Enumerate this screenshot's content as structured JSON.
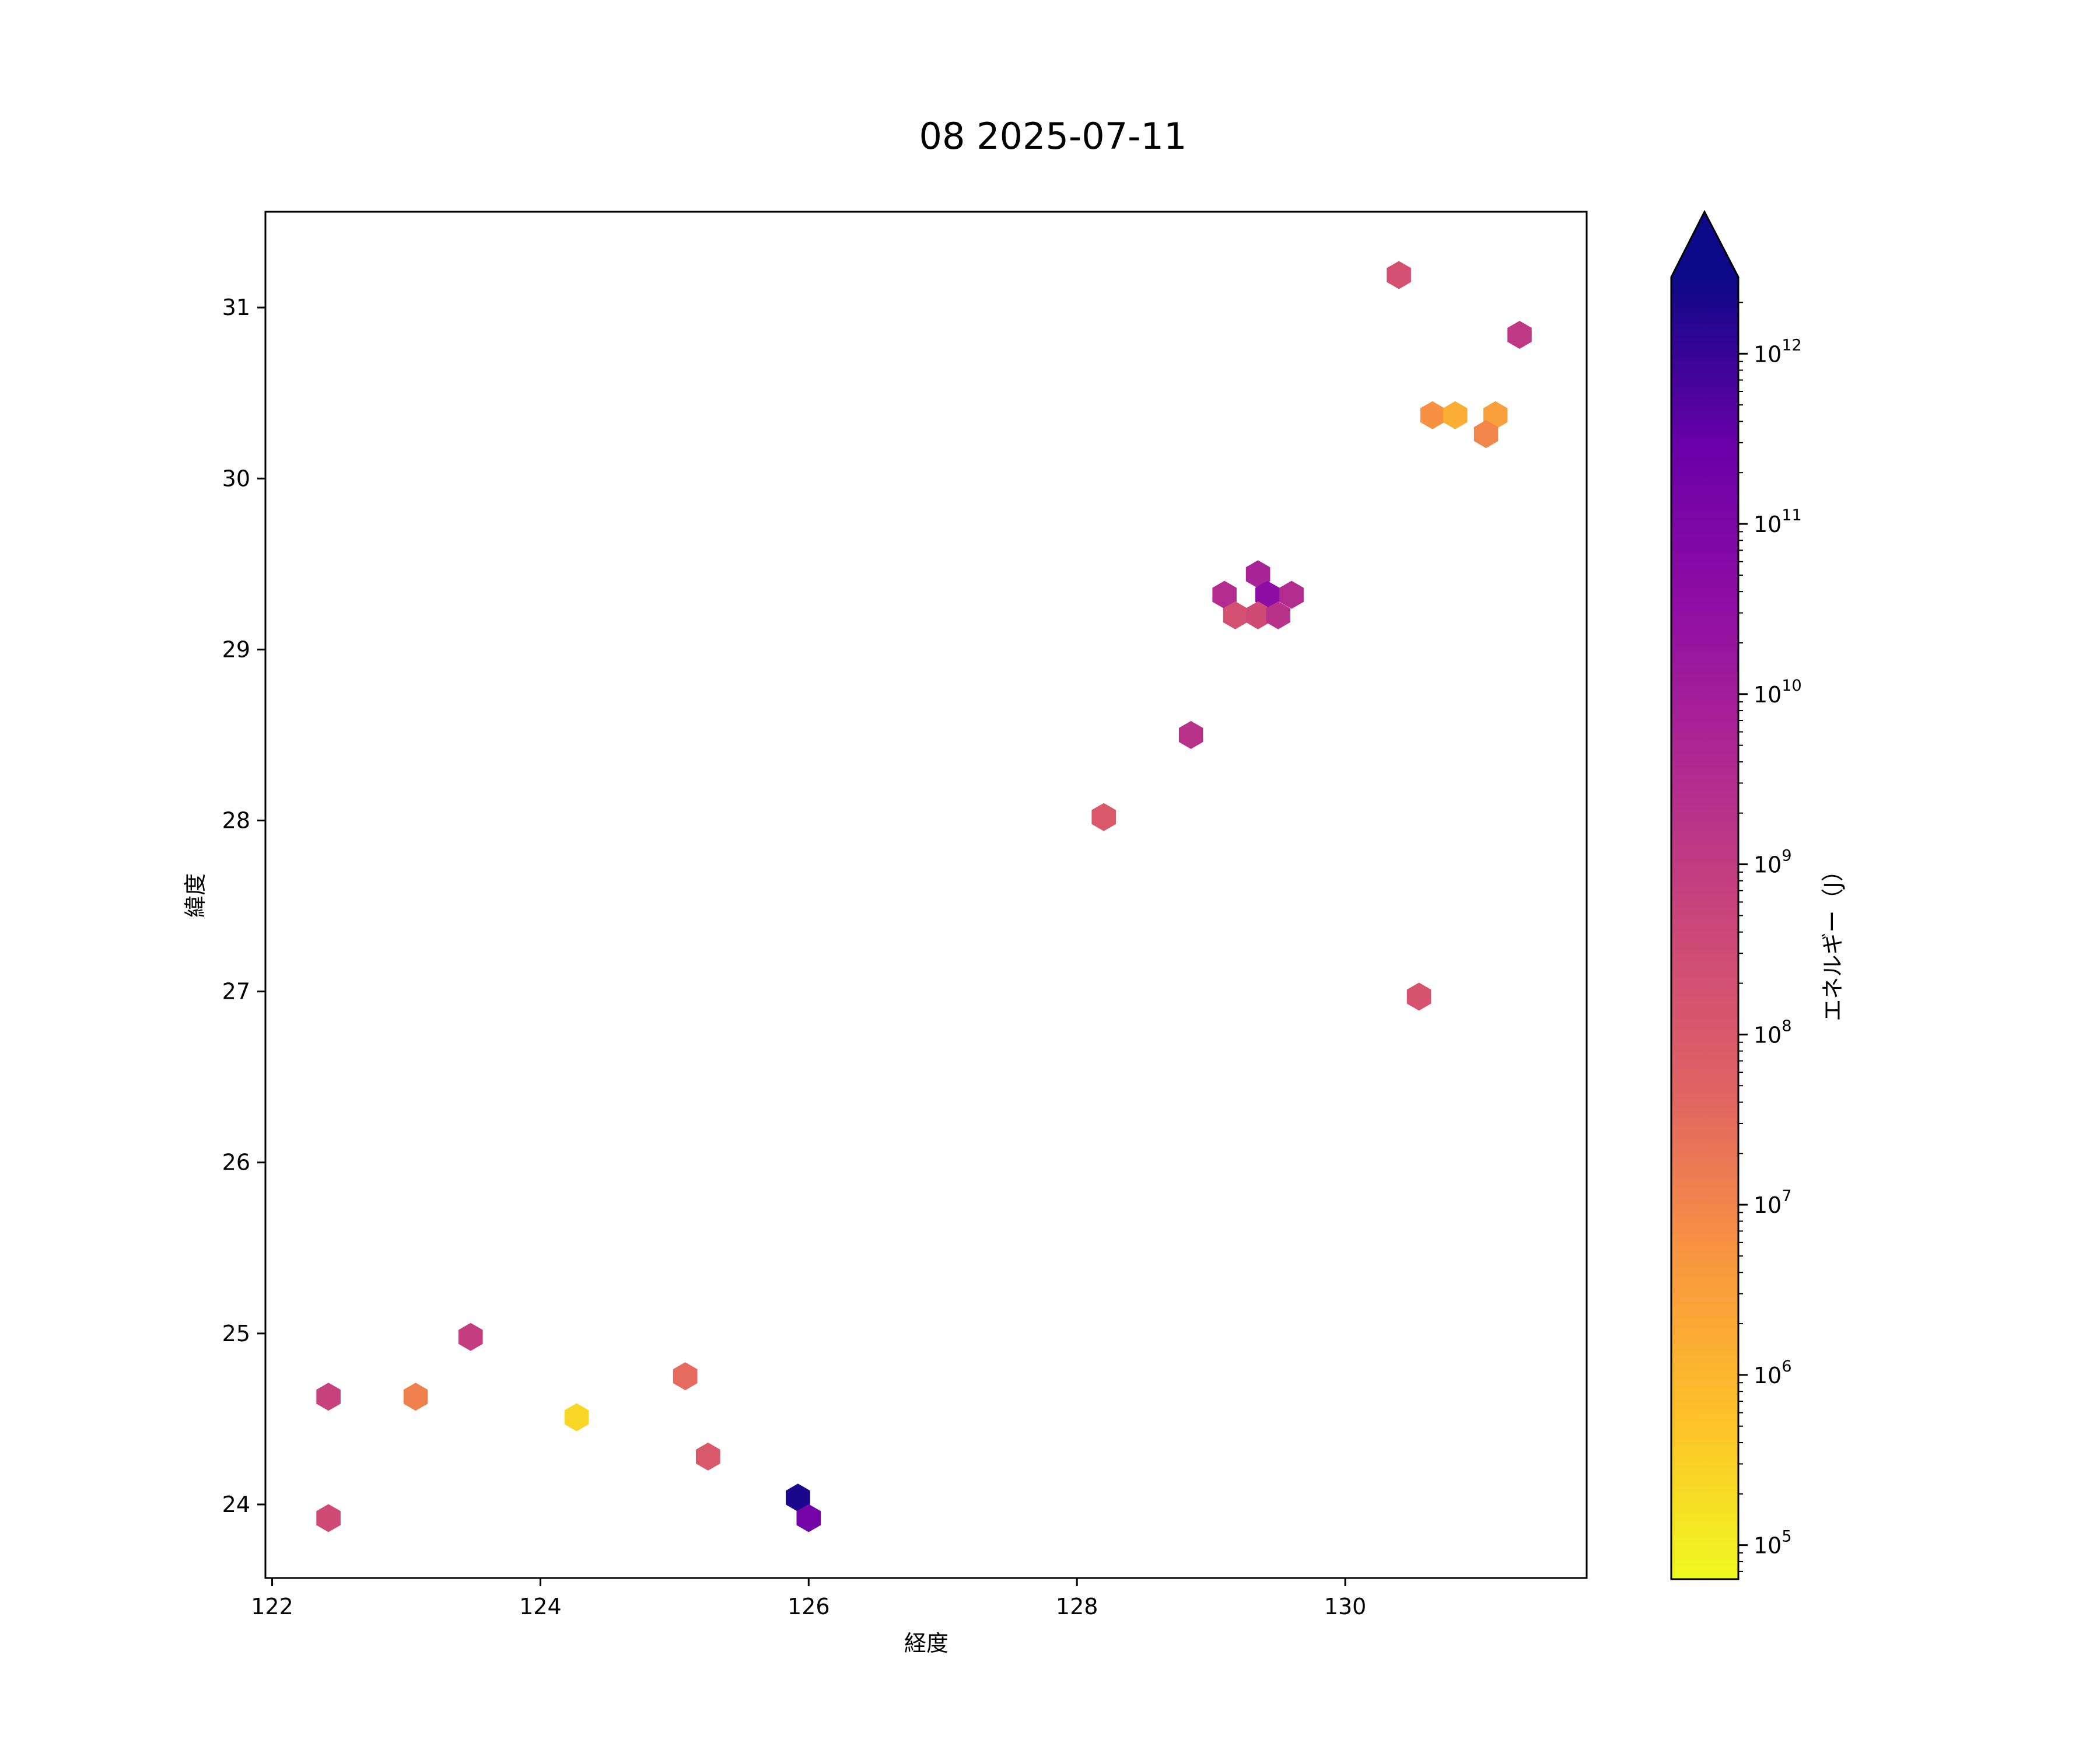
{
  "chart_data": {
    "type": "hexbin",
    "title": "08 2025-07-11",
    "xlabel": "経度",
    "ylabel": "緯度",
    "xlim": [
      121.95,
      131.8
    ],
    "ylim": [
      23.57,
      31.56
    ],
    "x_ticks": [
      122,
      124,
      126,
      128,
      130
    ],
    "y_ticks": [
      24,
      25,
      26,
      27,
      28,
      29,
      30,
      31
    ],
    "colorbar": {
      "label": "エネルギー（J）",
      "scale": "log",
      "colormap": "plasma_r",
      "extend": "max",
      "range_log10": [
        4.8,
        12.45
      ],
      "ticks": [
        {
          "exp": 5,
          "label": "10",
          "sup": "5"
        },
        {
          "exp": 6,
          "label": "10",
          "sup": "6"
        },
        {
          "exp": 7,
          "label": "10",
          "sup": "7"
        },
        {
          "exp": 8,
          "label": "10",
          "sup": "8"
        },
        {
          "exp": 9,
          "label": "10",
          "sup": "9"
        },
        {
          "exp": 10,
          "label": "10",
          "sup": "10"
        },
        {
          "exp": 11,
          "label": "10",
          "sup": "11"
        },
        {
          "exp": 12,
          "label": "10",
          "sup": "12"
        }
      ]
    },
    "points": [
      {
        "lon": 130.4,
        "lat": 31.19,
        "log10_energy": 8.3
      },
      {
        "lon": 131.3,
        "lat": 30.84,
        "log10_energy": 9.1
      },
      {
        "lon": 130.65,
        "lat": 30.37,
        "log10_energy": 6.8
      },
      {
        "lon": 130.82,
        "lat": 30.37,
        "log10_energy": 6.2
      },
      {
        "lon": 131.12,
        "lat": 30.37,
        "log10_energy": 6.5
      },
      {
        "lon": 131.05,
        "lat": 30.26,
        "log10_energy": 7.0
      },
      {
        "lon": 129.35,
        "lat": 29.44,
        "log10_energy": 9.8
      },
      {
        "lon": 129.1,
        "lat": 29.32,
        "log10_energy": 9.5
      },
      {
        "lon": 129.42,
        "lat": 29.32,
        "log10_energy": 10.6
      },
      {
        "lon": 129.6,
        "lat": 29.32,
        "log10_energy": 9.5
      },
      {
        "lon": 129.18,
        "lat": 29.2,
        "log10_energy": 8.3
      },
      {
        "lon": 129.35,
        "lat": 29.2,
        "log10_energy": 8.5
      },
      {
        "lon": 129.5,
        "lat": 29.2,
        "log10_energy": 9.3
      },
      {
        "lon": 128.85,
        "lat": 28.5,
        "log10_energy": 9.3
      },
      {
        "lon": 128.2,
        "lat": 28.02,
        "log10_energy": 8.0
      },
      {
        "lon": 130.55,
        "lat": 26.97,
        "log10_energy": 8.2
      },
      {
        "lon": 123.48,
        "lat": 24.98,
        "log10_energy": 8.9
      },
      {
        "lon": 122.42,
        "lat": 24.63,
        "log10_energy": 8.8
      },
      {
        "lon": 123.07,
        "lat": 24.63,
        "log10_energy": 7.1
      },
      {
        "lon": 124.27,
        "lat": 24.51,
        "log10_energy": 5.4
      },
      {
        "lon": 125.08,
        "lat": 24.75,
        "log10_energy": 7.5
      },
      {
        "lon": 125.25,
        "lat": 24.28,
        "log10_energy": 8.0
      },
      {
        "lon": 122.42,
        "lat": 23.92,
        "log10_energy": 8.5
      },
      {
        "lon": 125.92,
        "lat": 24.04,
        "log10_energy": 12.3
      },
      {
        "lon": 126.0,
        "lat": 23.92,
        "log10_energy": 11.2
      }
    ]
  }
}
